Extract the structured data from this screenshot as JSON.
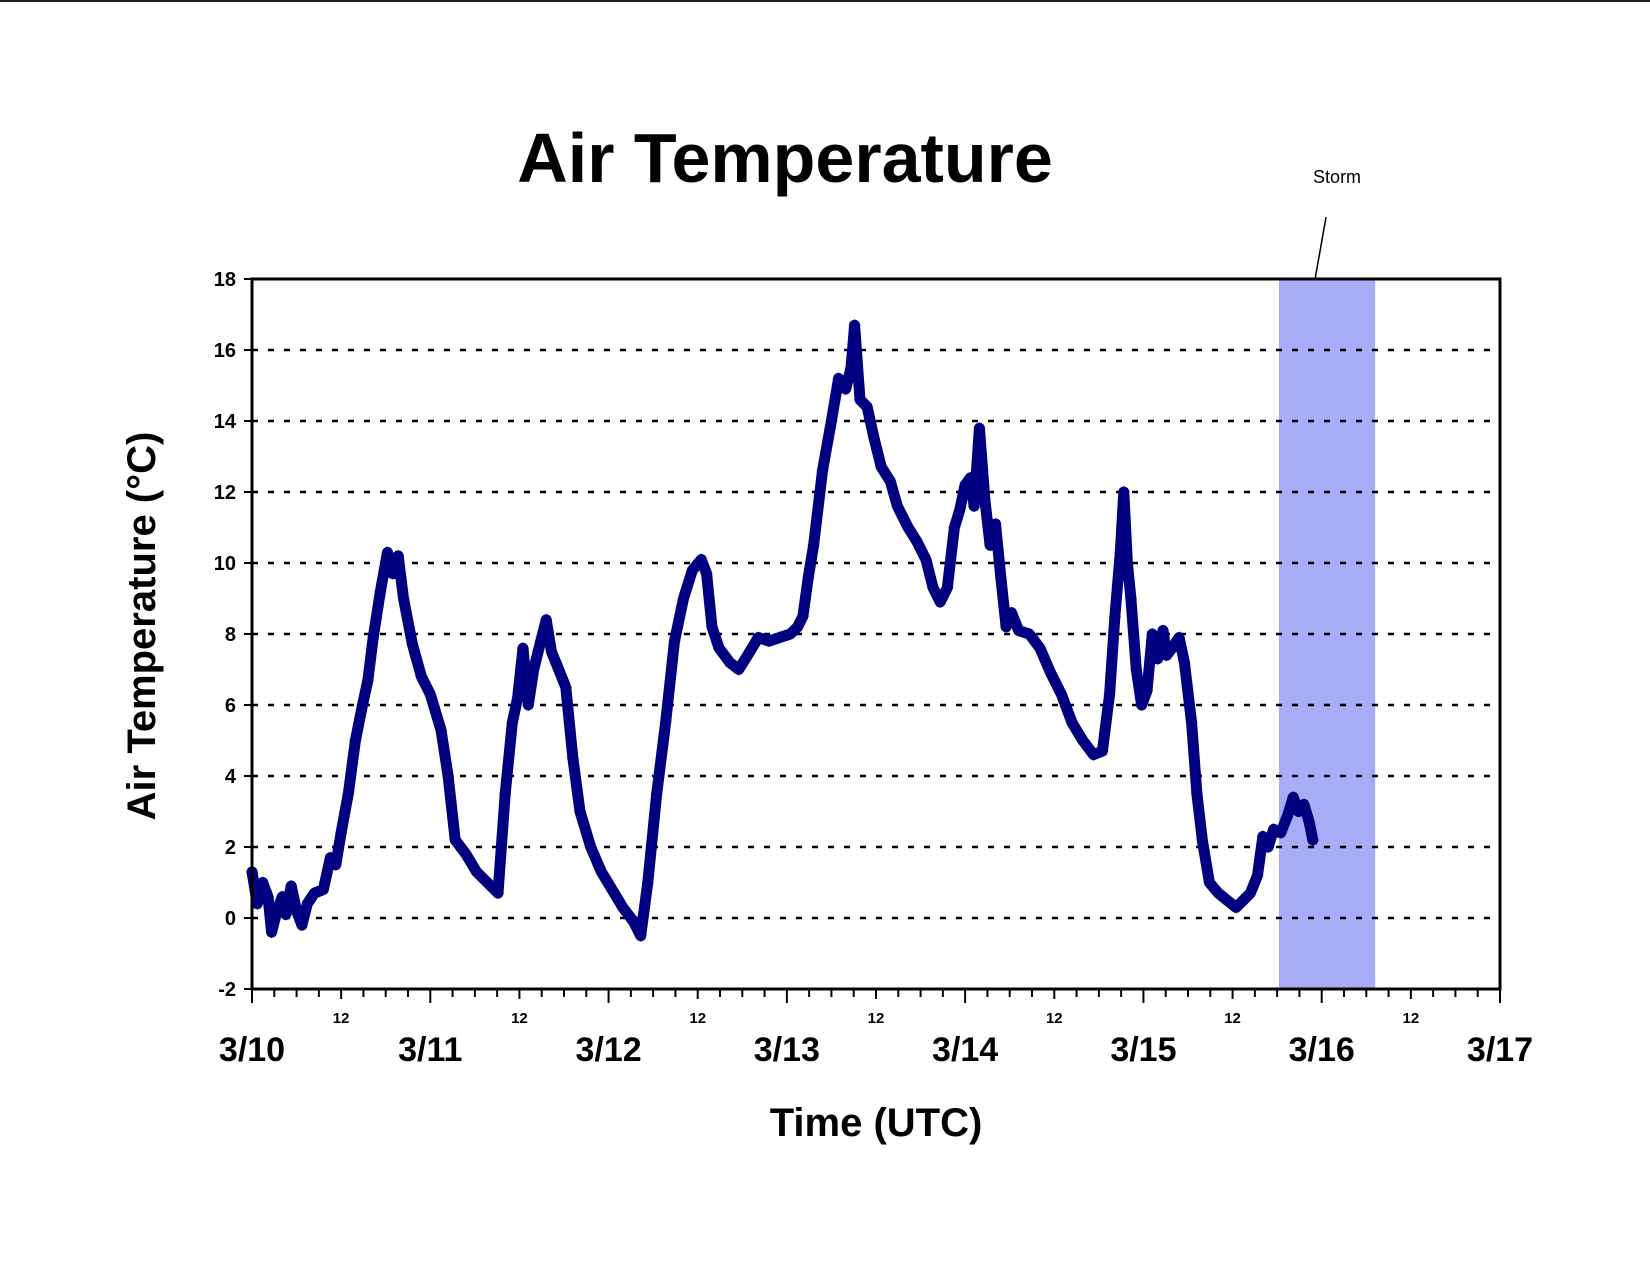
{
  "chart_data": {
    "type": "line",
    "title": "Air Temperature",
    "xlabel": "Time (UTC)",
    "ylabel": "Air Temperature (°C)",
    "ylim": [
      -2,
      18
    ],
    "yticks": [
      -2,
      0,
      2,
      4,
      6,
      8,
      10,
      12,
      14,
      16,
      18
    ],
    "xlim_days": [
      0,
      7
    ],
    "date_labels": [
      "3/10",
      "3/11",
      "3/12",
      "3/13",
      "3/14",
      "3/15",
      "3/16",
      "3/17"
    ],
    "midday_label": "12",
    "grid": "horizontal dotted",
    "series_color": "#000080",
    "highlight": {
      "label": "Storm",
      "start_day": 5.76,
      "end_day": 6.3,
      "color": "#a8abf5"
    },
    "series": [
      {
        "name": "",
        "points": [
          [
            0.0,
            1.3
          ],
          [
            0.03,
            0.4
          ],
          [
            0.06,
            1.0
          ],
          [
            0.09,
            0.6
          ],
          [
            0.11,
            -0.4
          ],
          [
            0.14,
            0.2
          ],
          [
            0.17,
            0.6
          ],
          [
            0.19,
            0.1
          ],
          [
            0.22,
            0.9
          ],
          [
            0.25,
            0.2
          ],
          [
            0.28,
            -0.2
          ],
          [
            0.31,
            0.4
          ],
          [
            0.35,
            0.7
          ],
          [
            0.4,
            0.8
          ],
          [
            0.44,
            1.7
          ],
          [
            0.47,
            1.5
          ],
          [
            0.5,
            2.4
          ],
          [
            0.54,
            3.5
          ],
          [
            0.58,
            5.0
          ],
          [
            0.62,
            6.0
          ],
          [
            0.65,
            6.7
          ],
          [
            0.68,
            7.9
          ],
          [
            0.72,
            9.2
          ],
          [
            0.76,
            10.3
          ],
          [
            0.79,
            9.7
          ],
          [
            0.82,
            10.2
          ],
          [
            0.85,
            9.0
          ],
          [
            0.9,
            7.7
          ],
          [
            0.95,
            6.8
          ],
          [
            1.0,
            6.3
          ],
          [
            1.06,
            5.3
          ],
          [
            1.1,
            4.0
          ],
          [
            1.14,
            2.2
          ],
          [
            1.2,
            1.8
          ],
          [
            1.26,
            1.3
          ],
          [
            1.32,
            1.0
          ],
          [
            1.38,
            0.7
          ],
          [
            1.42,
            3.5
          ],
          [
            1.46,
            5.5
          ],
          [
            1.49,
            6.2
          ],
          [
            1.52,
            7.6
          ],
          [
            1.55,
            6.0
          ],
          [
            1.58,
            7.0
          ],
          [
            1.62,
            7.8
          ],
          [
            1.65,
            8.4
          ],
          [
            1.68,
            7.5
          ],
          [
            1.72,
            7.0
          ],
          [
            1.76,
            6.5
          ],
          [
            1.8,
            4.5
          ],
          [
            1.84,
            3.0
          ],
          [
            1.9,
            2.0
          ],
          [
            1.96,
            1.3
          ],
          [
            2.02,
            0.8
          ],
          [
            2.08,
            0.3
          ],
          [
            2.14,
            -0.1
          ],
          [
            2.18,
            -0.5
          ],
          [
            2.22,
            1.0
          ],
          [
            2.27,
            3.5
          ],
          [
            2.32,
            5.5
          ],
          [
            2.37,
            7.8
          ],
          [
            2.42,
            9.0
          ],
          [
            2.47,
            9.8
          ],
          [
            2.52,
            10.1
          ],
          [
            2.55,
            9.7
          ],
          [
            2.58,
            8.2
          ],
          [
            2.62,
            7.6
          ],
          [
            2.68,
            7.2
          ],
          [
            2.73,
            7.0
          ],
          [
            2.78,
            7.4
          ],
          [
            2.84,
            7.9
          ],
          [
            2.9,
            7.8
          ],
          [
            2.96,
            7.9
          ],
          [
            3.02,
            8.0
          ],
          [
            3.06,
            8.2
          ],
          [
            3.09,
            8.5
          ],
          [
            3.12,
            9.6
          ],
          [
            3.15,
            10.5
          ],
          [
            3.2,
            12.6
          ],
          [
            3.25,
            14.0
          ],
          [
            3.29,
            15.2
          ],
          [
            3.33,
            14.9
          ],
          [
            3.36,
            15.5
          ],
          [
            3.38,
            16.7
          ],
          [
            3.41,
            14.6
          ],
          [
            3.45,
            14.4
          ],
          [
            3.49,
            13.5
          ],
          [
            3.53,
            12.7
          ],
          [
            3.58,
            12.3
          ],
          [
            3.62,
            11.6
          ],
          [
            3.68,
            11.0
          ],
          [
            3.73,
            10.6
          ],
          [
            3.78,
            10.1
          ],
          [
            3.82,
            9.3
          ],
          [
            3.86,
            8.9
          ],
          [
            3.9,
            9.3
          ],
          [
            3.94,
            11.0
          ],
          [
            3.97,
            11.5
          ],
          [
            4.0,
            12.2
          ],
          [
            4.03,
            12.4
          ],
          [
            4.05,
            11.6
          ],
          [
            4.08,
            13.8
          ],
          [
            4.11,
            11.8
          ],
          [
            4.14,
            10.5
          ],
          [
            4.17,
            11.1
          ],
          [
            4.2,
            9.6
          ],
          [
            4.23,
            8.2
          ],
          [
            4.26,
            8.6
          ],
          [
            4.3,
            8.1
          ],
          [
            4.36,
            8.0
          ],
          [
            4.42,
            7.6
          ],
          [
            4.48,
            6.9
          ],
          [
            4.54,
            6.3
          ],
          [
            4.6,
            5.5
          ],
          [
            4.66,
            5.0
          ],
          [
            4.72,
            4.6
          ],
          [
            4.77,
            4.7
          ],
          [
            4.81,
            6.3
          ],
          [
            4.84,
            8.5
          ],
          [
            4.87,
            10.3
          ],
          [
            4.89,
            12.0
          ],
          [
            4.91,
            10.0
          ],
          [
            4.93,
            9.0
          ],
          [
            4.96,
            7.0
          ],
          [
            4.99,
            6.0
          ],
          [
            5.02,
            6.4
          ],
          [
            5.05,
            8.0
          ],
          [
            5.08,
            7.3
          ],
          [
            5.11,
            8.1
          ],
          [
            5.13,
            7.4
          ],
          [
            5.16,
            7.6
          ],
          [
            5.2,
            7.9
          ],
          [
            5.23,
            7.2
          ],
          [
            5.27,
            5.5
          ],
          [
            5.3,
            3.5
          ],
          [
            5.33,
            2.2
          ],
          [
            5.37,
            1.0
          ],
          [
            5.42,
            0.7
          ],
          [
            5.47,
            0.5
          ],
          [
            5.52,
            0.3
          ],
          [
            5.56,
            0.5
          ],
          [
            5.6,
            0.7
          ],
          [
            5.64,
            1.2
          ],
          [
            5.67,
            2.3
          ],
          [
            5.7,
            2.0
          ],
          [
            5.73,
            2.5
          ],
          [
            5.77,
            2.4
          ],
          [
            5.81,
            2.9
          ],
          [
            5.84,
            3.4
          ],
          [
            5.87,
            3.0
          ],
          [
            5.9,
            3.2
          ],
          [
            5.93,
            2.7
          ],
          [
            5.95,
            2.2
          ]
        ]
      }
    ]
  }
}
